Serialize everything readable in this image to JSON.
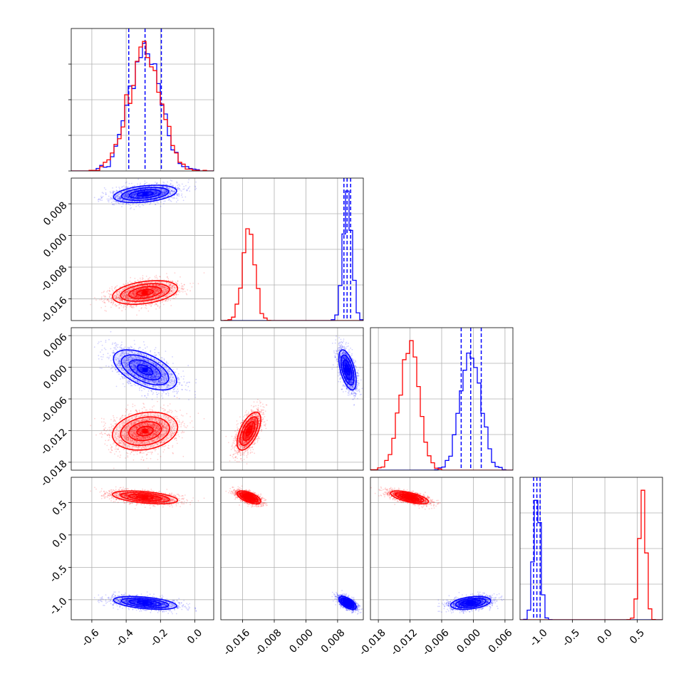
{
  "chart_data": {
    "type": "corner",
    "parameters": [
      {
        "range": [
          -0.72,
          0.11
        ],
        "ticks": [
          "-0.6",
          "-0.4",
          "-0.2",
          "0.0"
        ],
        "tick_values": [
          -0.6,
          -0.4,
          -0.2,
          0.0
        ]
      },
      {
        "range": [
          -0.0215,
          0.0145
        ],
        "ticks": [
          "-0.016",
          "-0.008",
          "0.000",
          "0.008"
        ],
        "tick_values": [
          -0.016,
          -0.008,
          0.0,
          0.008
        ]
      },
      {
        "range": [
          -0.0195,
          0.0075
        ],
        "ticks": [
          "-0.018",
          "-0.012",
          "-0.006",
          "0.000",
          "0.006"
        ],
        "tick_values": [
          -0.018,
          -0.012,
          -0.006,
          0.0,
          0.006
        ]
      },
      {
        "range": [
          -1.31,
          0.89
        ],
        "ticks": [
          "-1.0",
          "-0.5",
          "0.0",
          "0.5"
        ],
        "tick_values": [
          -1.0,
          -0.5,
          0.0,
          0.5
        ]
      }
    ],
    "series": [
      {
        "color": "#ff0000",
        "means": [
          -0.29,
          -0.0144,
          -0.0121,
          0.58
        ],
        "sds": [
          0.095,
          0.0015,
          0.0018,
          0.05
        ],
        "quantiles": null
      },
      {
        "color": "#0000ff",
        "means": [
          -0.29,
          0.0105,
          -0.0005,
          -1.05
        ],
        "sds": [
          0.092,
          0.0011,
          0.0019,
          0.05
        ],
        "quantiles": [
          [
            -0.385,
            -0.29,
            -0.195
          ],
          [
            0.0096,
            0.0104,
            0.0113
          ],
          [
            -0.0023,
            -0.0005,
            0.0015
          ],
          [
            -1.1,
            -1.05,
            -1.0
          ]
        ]
      }
    ],
    "correlations": {
      "0_1": [
        0.35,
        0.35
      ],
      "0_2": [
        0.2,
        -0.55
      ],
      "0_3": [
        -0.45,
        -0.45
      ],
      "1_2": [
        0.6,
        -0.55
      ],
      "1_3": [
        -0.6,
        -0.6
      ],
      "2_3": [
        -0.65,
        0.35
      ]
    },
    "hist_bins": [
      20,
      20,
      20,
      20
    ],
    "grid": true
  }
}
